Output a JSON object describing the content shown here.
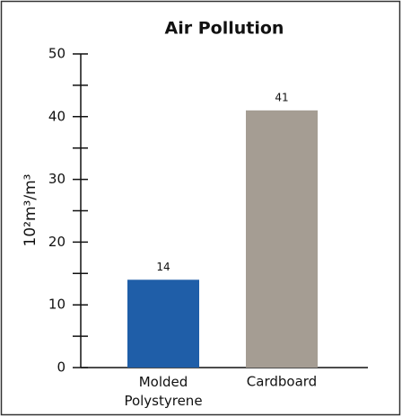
{
  "chart_data": {
    "type": "bar",
    "title": "Air Pollution",
    "y_label": "10²m³/m³",
    "categories": [
      "Molded Polystyrene",
      "Cardboard"
    ],
    "values": [
      14,
      41
    ],
    "colors": [
      "#1f5ea8",
      "#a59d93"
    ],
    "ylim": [
      0,
      50
    ],
    "yticks": [
      0,
      10,
      20,
      30,
      40,
      50
    ],
    "minor_yticks": [
      5,
      15,
      25,
      35,
      45
    ]
  }
}
